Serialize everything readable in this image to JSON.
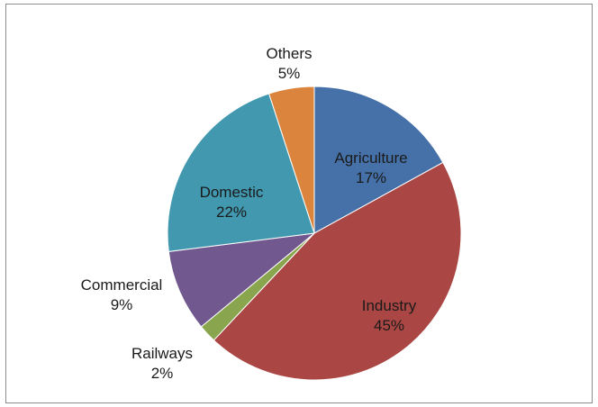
{
  "chart_data": {
    "type": "pie",
    "title": "",
    "start_angle_deg": 0,
    "direction": "clockwise",
    "slices": [
      {
        "label": "Agriculture",
        "value": 17,
        "value_label": "17%",
        "color": "#4571A8"
      },
      {
        "label": "Industry",
        "value": 45,
        "value_label": "45%",
        "color": "#AA4643"
      },
      {
        "label": "Railways",
        "value": 2,
        "value_label": "2%",
        "color": "#89A54E"
      },
      {
        "label": "Commercial",
        "value": 9,
        "value_label": "9%",
        "color": "#71588F"
      },
      {
        "label": "Domestic",
        "value": 22,
        "value_label": "22%",
        "color": "#4198AF"
      },
      {
        "label": "Others",
        "value": 5,
        "value_label": "5%",
        "color": "#DB843D"
      }
    ]
  }
}
